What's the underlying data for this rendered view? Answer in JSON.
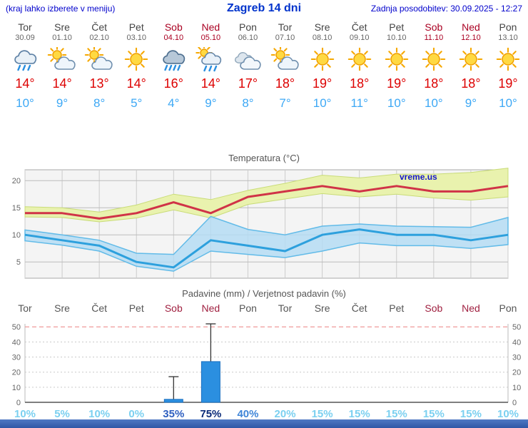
{
  "header": {
    "hint": "(kraj lahko izberete v meniju)",
    "title": "Zagreb 14 dni",
    "updated": "Zadnja posodobitev: 30.09.2025 - 12:27"
  },
  "days": [
    {
      "name": "Tor",
      "date": "30.09",
      "weekend": false,
      "icon": "rain",
      "tmax": "14°",
      "tmin": "10°"
    },
    {
      "name": "Sre",
      "date": "01.10",
      "weekend": false,
      "icon": "partly-cloudy",
      "tmax": "14°",
      "tmin": "9°"
    },
    {
      "name": "Čet",
      "date": "02.10",
      "weekend": false,
      "icon": "partly-cloudy",
      "tmax": "13°",
      "tmin": "8°"
    },
    {
      "name": "Pet",
      "date": "03.10",
      "weekend": false,
      "icon": "sun",
      "tmax": "14°",
      "tmin": "5°"
    },
    {
      "name": "Sob",
      "date": "04.10",
      "weekend": true,
      "icon": "heavy-rain",
      "tmax": "16°",
      "tmin": "4°"
    },
    {
      "name": "Ned",
      "date": "05.10",
      "weekend": true,
      "icon": "sun-rain",
      "tmax": "14°",
      "tmin": "9°"
    },
    {
      "name": "Pon",
      "date": "06.10",
      "weekend": false,
      "icon": "cloudy",
      "tmax": "17°",
      "tmin": "8°"
    },
    {
      "name": "Tor",
      "date": "07.10",
      "weekend": false,
      "icon": "partly-cloudy",
      "tmax": "18°",
      "tmin": "7°"
    },
    {
      "name": "Sre",
      "date": "08.10",
      "weekend": false,
      "icon": "sun",
      "tmax": "19°",
      "tmin": "10°"
    },
    {
      "name": "Čet",
      "date": "09.10",
      "weekend": false,
      "icon": "sun",
      "tmax": "18°",
      "tmin": "11°"
    },
    {
      "name": "Pet",
      "date": "10.10",
      "weekend": false,
      "icon": "sun",
      "tmax": "19°",
      "tmin": "10°"
    },
    {
      "name": "Sob",
      "date": "11.10",
      "weekend": true,
      "icon": "sun",
      "tmax": "18°",
      "tmin": "10°"
    },
    {
      "name": "Ned",
      "date": "12.10",
      "weekend": true,
      "icon": "sun",
      "tmax": "18°",
      "tmin": "9°"
    },
    {
      "name": "Pon",
      "date": "13.10",
      "weekend": false,
      "icon": "sun",
      "tmax": "19°",
      "tmin": "10°"
    }
  ],
  "chart_data": [
    {
      "type": "line",
      "title": "Temperatura (°C)",
      "watermark": "vreme.us",
      "categories": [
        "Tor 30.09",
        "Sre 01.10",
        "Čet 02.10",
        "Pet 03.10",
        "Sob 04.10",
        "Ned 05.10",
        "Pon 06.10",
        "Tor 07.10",
        "Sre 08.10",
        "Čet 09.10",
        "Pet 10.10",
        "Sob 11.10",
        "Ned 12.10",
        "Pon 13.10"
      ],
      "ylim": [
        2,
        22
      ],
      "yticks": [
        5,
        10,
        15,
        20
      ],
      "grid": true,
      "series": [
        {
          "name": "max_temp",
          "color": "#d03347",
          "values": [
            14,
            14,
            13,
            14,
            16,
            14,
            17,
            18,
            19,
            18,
            19,
            18,
            18,
            19
          ]
        },
        {
          "name": "min_temp",
          "color": "#2da0dd",
          "values": [
            10,
            9,
            8,
            5,
            4,
            9,
            8,
            7,
            10,
            11,
            10,
            10,
            9,
            10
          ]
        },
        {
          "name": "max_band_upper",
          "color": "#e9f2ae",
          "values": [
            15.2,
            15,
            14.2,
            15.5,
            17.5,
            16.5,
            18.2,
            19.5,
            21,
            20.5,
            21.2,
            21.2,
            21.5,
            22.3
          ]
        },
        {
          "name": "max_band_lower",
          "color": "#e9f2ae",
          "values": [
            13.3,
            13.2,
            12.4,
            13.1,
            14.6,
            13.1,
            15.6,
            16.6,
            17.6,
            17,
            17.5,
            16.8,
            16.4,
            17
          ]
        },
        {
          "name": "min_band_upper",
          "color": "#b3dcf4",
          "values": [
            10.9,
            10,
            9,
            6.6,
            6.4,
            13.4,
            11,
            10,
            11.6,
            12,
            11.6,
            11.5,
            11.4,
            13.2
          ]
        },
        {
          "name": "min_band_lower",
          "color": "#b3dcf4",
          "values": [
            8.9,
            8.1,
            7,
            4.2,
            3.3,
            7,
            6.4,
            5.8,
            7,
            8.5,
            8,
            8,
            7.5,
            8.2
          ]
        }
      ]
    },
    {
      "type": "bar",
      "title": "Padavine (mm) / Verjetnost padavin (%)",
      "categories": [
        "Tor",
        "Sre",
        "Čet",
        "Pet",
        "Sob",
        "Ned",
        "Pon",
        "Tor",
        "Sre",
        "Čet",
        "Pet",
        "Sob",
        "Ned",
        "Pon"
      ],
      "weekend_flags": [
        false,
        false,
        false,
        false,
        true,
        true,
        false,
        false,
        false,
        false,
        false,
        true,
        true,
        false
      ],
      "values_mm": [
        0,
        0,
        0,
        0,
        2,
        27,
        0,
        0,
        0,
        0,
        0,
        0,
        0,
        0
      ],
      "whisker_max_mm": [
        0,
        0,
        0,
        0,
        17,
        52,
        0,
        0,
        0,
        0,
        0,
        0,
        0,
        0
      ],
      "bar_color": "#2b8fe0",
      "ylim": [
        0,
        52
      ],
      "yticks": [
        0,
        10,
        20,
        30,
        40,
        50
      ],
      "probabilities": [
        {
          "label": "10%",
          "color": "#7bd0f0"
        },
        {
          "label": "5%",
          "color": "#7bd0f0"
        },
        {
          "label": "10%",
          "color": "#7bd0f0"
        },
        {
          "label": "0%",
          "color": "#7bd0f0"
        },
        {
          "label": "35%",
          "color": "#2e5fc0"
        },
        {
          "label": "75%",
          "color": "#0a2a78"
        },
        {
          "label": "40%",
          "color": "#3f85d8"
        },
        {
          "label": "20%",
          "color": "#7bd0f0"
        },
        {
          "label": "15%",
          "color": "#7bd0f0"
        },
        {
          "label": "15%",
          "color": "#7bd0f0"
        },
        {
          "label": "15%",
          "color": "#7bd0f0"
        },
        {
          "label": "15%",
          "color": "#7bd0f0"
        },
        {
          "label": "15%",
          "color": "#7bd0f0"
        },
        {
          "label": "10%",
          "color": "#7bd0f0"
        }
      ]
    }
  ],
  "colors": {
    "header_blue": "#0000cc",
    "title_blue": "#0033cc",
    "temp_max_red": "#dd0000",
    "temp_min_blue": "#3da8f5",
    "weekend_red": "#aa0022",
    "footer_blue": "#3a64ae"
  }
}
